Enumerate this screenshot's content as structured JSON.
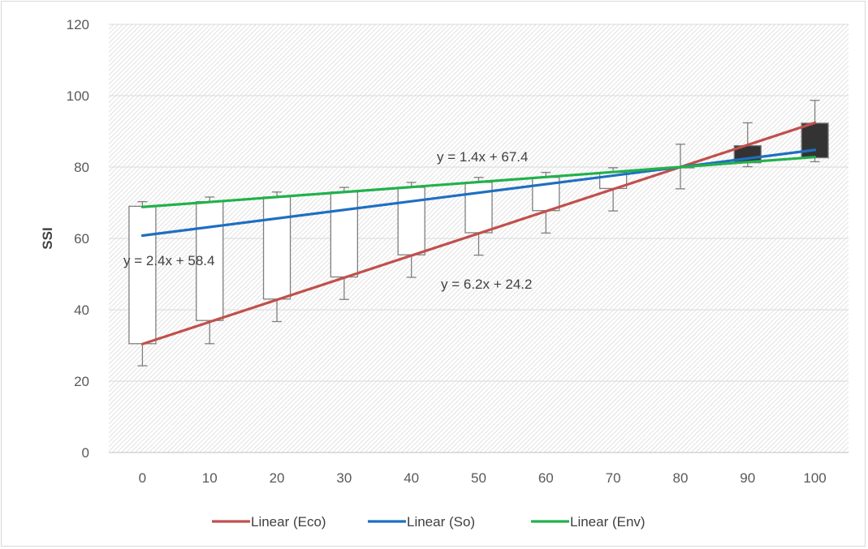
{
  "chart_data": {
    "type": "candlestick",
    "xlabel": "",
    "ylabel": "SSI",
    "ylim": [
      0,
      120
    ],
    "yticks": [
      "0",
      "20",
      "40",
      "60",
      "80",
      "100",
      "120"
    ],
    "categories": [
      "0",
      "10",
      "20",
      "30",
      "40",
      "50",
      "60",
      "70",
      "80",
      "90",
      "100"
    ],
    "boxes": [
      {
        "open": 30.5,
        "close": 69,
        "high": 70.3,
        "low": 24.3,
        "fill": "#ffffff"
      },
      {
        "open": 37,
        "close": 70.3,
        "high": 71.6,
        "low": 30.5,
        "fill": "#ffffff"
      },
      {
        "open": 43,
        "close": 71.6,
        "high": 73,
        "low": 36.7,
        "fill": "#ffffff"
      },
      {
        "open": 49.2,
        "close": 73,
        "high": 74.3,
        "low": 42.9,
        "fill": "#ffffff"
      },
      {
        "open": 55.4,
        "close": 74.3,
        "high": 75.7,
        "low": 49.1,
        "fill": "#ffffff"
      },
      {
        "open": 61.6,
        "close": 75.7,
        "high": 77.1,
        "low": 55.3,
        "fill": "#ffffff"
      },
      {
        "open": 67.8,
        "close": 77.1,
        "high": 78.5,
        "low": 61.5,
        "fill": "#ffffff"
      },
      {
        "open": 74,
        "close": 78.5,
        "high": 79.8,
        "low": 67.7,
        "fill": "#ffffff"
      },
      {
        "open": 79.8,
        "close": 80,
        "high": 86.4,
        "low": 73.9,
        "fill": "#ffffff"
      },
      {
        "open": 81.2,
        "close": 86,
        "high": 92.4,
        "low": 80.1,
        "fill": "#333333"
      },
      {
        "open": 82.6,
        "close": 92.3,
        "high": 98.7,
        "low": 81.5,
        "fill": "#333333"
      }
    ],
    "series": [
      {
        "name": "Linear (Eco)",
        "color": "#c0504d",
        "slope": 6.2,
        "intercept": 24.2,
        "equation": "y = 6.2x + 24.2"
      },
      {
        "name": "Linear (So)",
        "color": "#1f6fc0",
        "slope": 2.4,
        "intercept": 58.4,
        "equation": "y = 2.4x + 58.4"
      },
      {
        "name": "Linear (Env)",
        "color": "#22b14c",
        "slope": 1.4,
        "intercept": 67.4,
        "equation": "y = 1.4x + 67.4"
      }
    ],
    "legend_position": "bottom",
    "grid": true
  }
}
